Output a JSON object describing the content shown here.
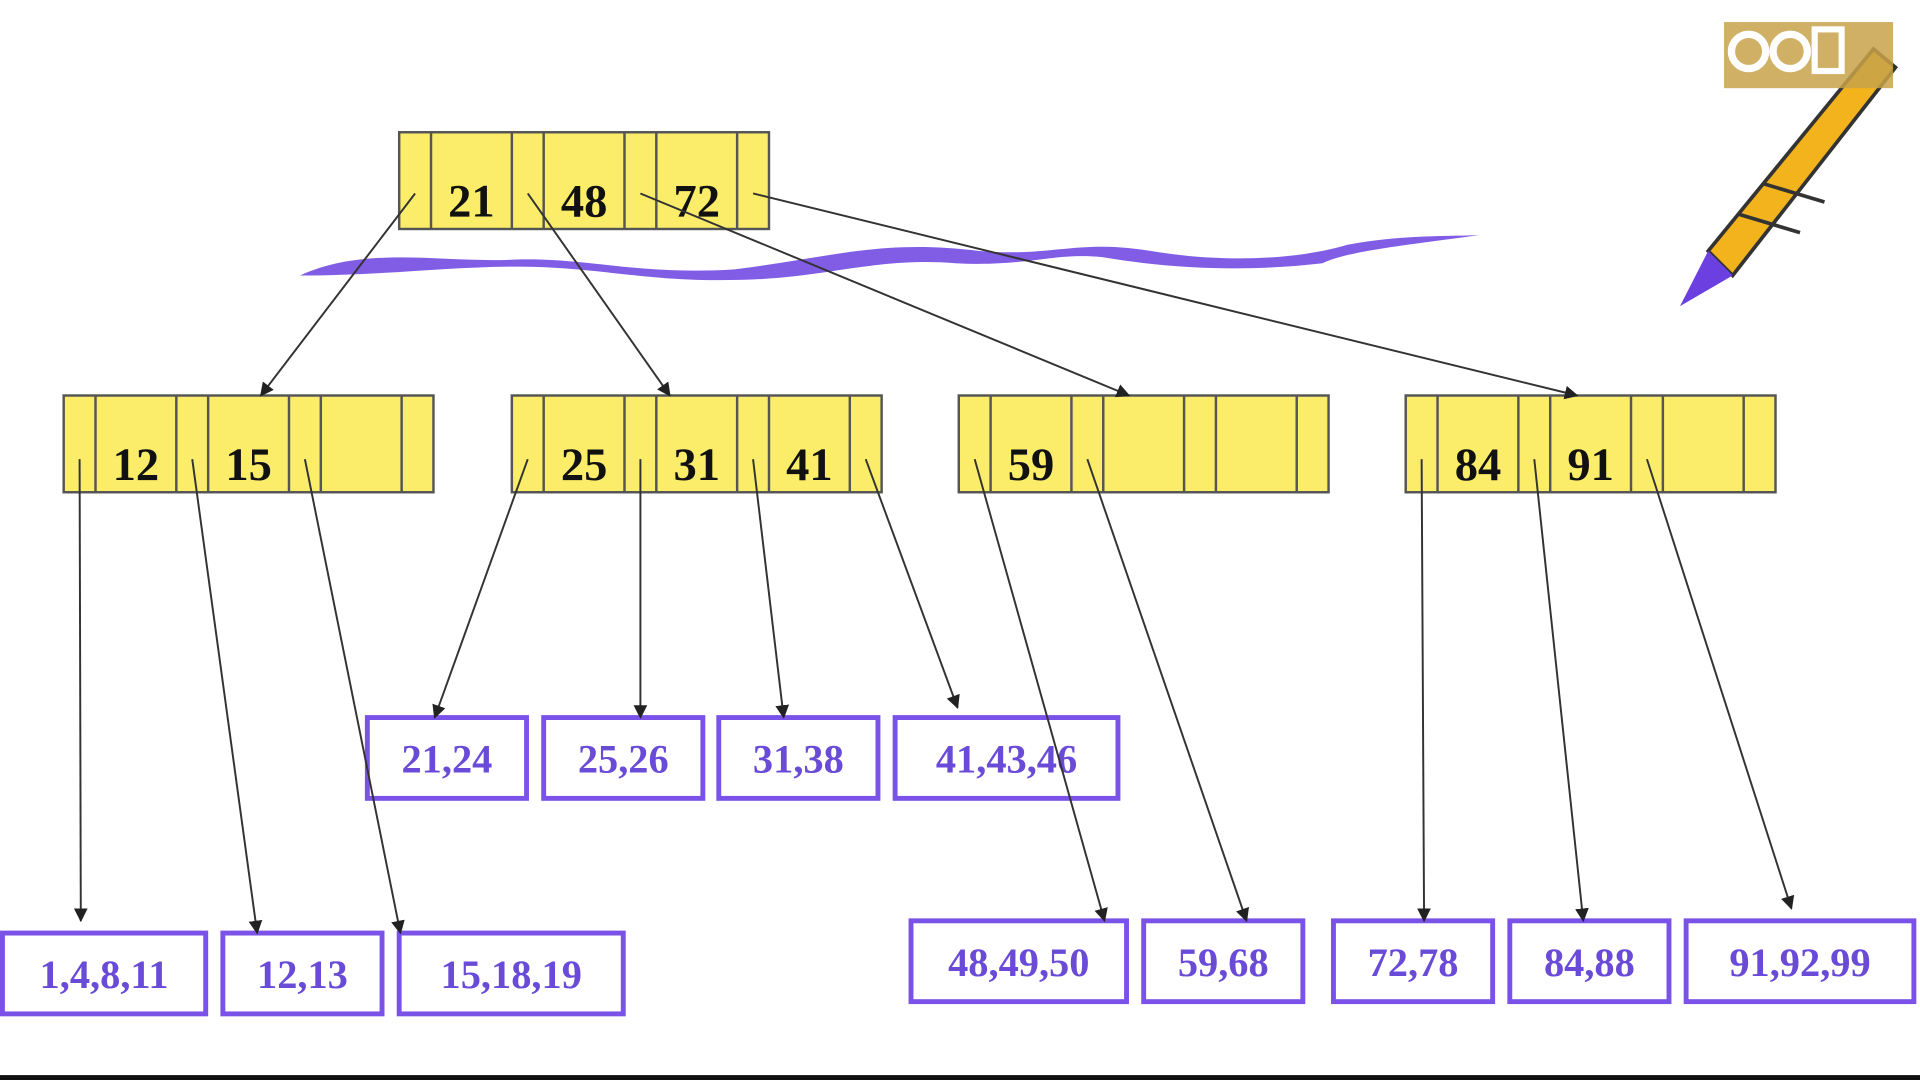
{
  "root": {
    "keys": [
      21,
      48,
      72
    ]
  },
  "internal": [
    {
      "keys": [
        12,
        15
      ]
    },
    {
      "keys": [
        25,
        31,
        41
      ]
    },
    {
      "keys": [
        59
      ]
    },
    {
      "keys": [
        84,
        91
      ]
    }
  ],
  "leaves": [
    "1,4,8,11",
    "12,13",
    "15,18,19",
    "21,24",
    "25,26",
    "31,38",
    "41,43,46",
    "48,49,50",
    "59,68",
    "72,78",
    "84,88",
    "91,92,99"
  ]
}
